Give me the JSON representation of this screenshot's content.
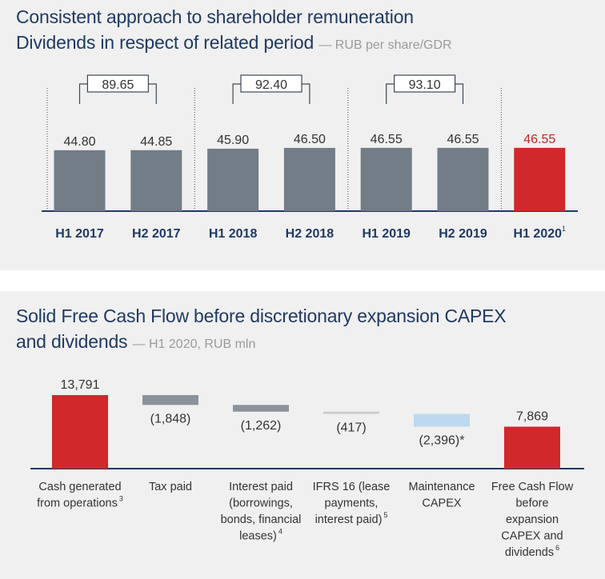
{
  "dividends": {
    "title_line1": "Consistent approach to shareholder remuneration",
    "title_line2": "Dividends in respect of related period",
    "subtitle": "— RUB per share/GDR",
    "chart_data": {
      "type": "bar",
      "categories": [
        "H1 2017",
        "H2 2017",
        "H1 2018",
        "H2 2018",
        "H1 2019",
        "H2 2019",
        "H1 2020"
      ],
      "values": [
        44.8,
        44.85,
        45.9,
        46.5,
        46.55,
        46.55,
        46.55
      ],
      "value_labels": [
        "44.80",
        "44.85",
        "45.90",
        "46.50",
        "46.55",
        "46.55",
        "46.55"
      ],
      "highlight_index": 6,
      "last_category_footnote": "1",
      "annual_totals": [
        {
          "label": "89.65",
          "from": 0,
          "to": 1
        },
        {
          "label": "92.40",
          "from": 2,
          "to": 3
        },
        {
          "label": "93.10",
          "from": 4,
          "to": 5
        }
      ],
      "colors": {
        "bar": "#737d87",
        "highlight": "#d0282b",
        "highlight_label": "#c0282b",
        "axis": "#1f3a63"
      }
    }
  },
  "fcf": {
    "title_line1": "Solid Free Cash Flow before discretionary expansion CAPEX",
    "title_line2": "and dividends",
    "subtitle": "— H1 2020, RUB mln",
    "chart_data": {
      "type": "bar",
      "subtype": "waterfall",
      "steps": [
        {
          "label": "Cash generated from operations",
          "label_lines": [
            "Cash generated",
            "from operations"
          ],
          "footnote": "3",
          "value": 13791,
          "value_label": "13,791",
          "color": "#d0282b",
          "kind": "total"
        },
        {
          "label": "Tax paid",
          "label_lines": [
            "Tax paid"
          ],
          "footnote": "",
          "value": -1848,
          "value_label": "(1,848)",
          "color": "#8c929c",
          "kind": "delta"
        },
        {
          "label": "Interest paid (borrowings, bonds, financial leases)",
          "label_lines": [
            "Interest paid",
            "(borrowings,",
            "bonds, financial",
            "leases)"
          ],
          "footnote": "4",
          "value": -1262,
          "value_label": "(1,262)",
          "color": "#8c929c",
          "kind": "delta"
        },
        {
          "label": "IFRS 16 (lease payments, interest paid)",
          "label_lines": [
            "IFRS 16 (lease",
            "payments,",
            "interest paid)"
          ],
          "footnote": "5",
          "value": -417,
          "value_label": "(417)",
          "color": "#cbcbcb",
          "kind": "delta"
        },
        {
          "label": "Maintenance CAPEX",
          "label_lines": [
            "Maintenance",
            "CAPEX"
          ],
          "footnote": "",
          "value": -2396,
          "value_label": "(2,396)*",
          "color": "#bcd9ef",
          "kind": "delta"
        },
        {
          "label": "Free Cash Flow before expansion CAPEX and dividends",
          "label_lines": [
            "Free Cash Flow",
            "before",
            "expansion",
            "CAPEX and",
            "dividends"
          ],
          "footnote": "6",
          "value": 7869,
          "value_label": "7,869",
          "color": "#d0282b",
          "kind": "total"
        }
      ],
      "colors": {
        "axis": "#1f3a63"
      }
    }
  }
}
